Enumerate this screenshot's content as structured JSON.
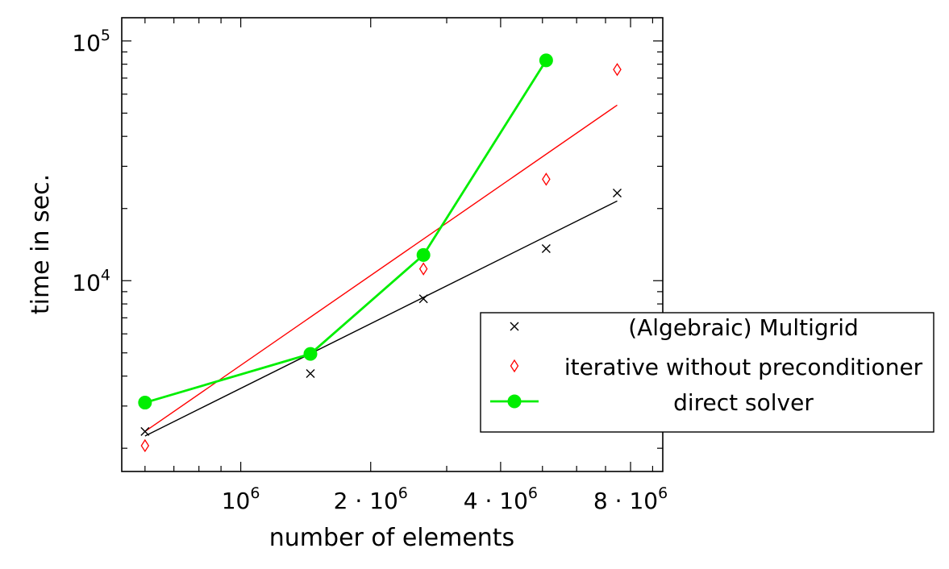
{
  "chart_data": {
    "type": "scatter",
    "title": "",
    "xlabel": "number of elements",
    "ylabel": "time in sec.",
    "xscale": "log",
    "yscale": "log",
    "xlim": [
      530000,
      9500000
    ],
    "ylim": [
      1600,
      125000
    ],
    "xticks": [
      {
        "value": 1000000,
        "base": "10",
        "exp": "6",
        "coef": ""
      },
      {
        "value": 2000000,
        "base": "10",
        "exp": "6",
        "coef": "2 · "
      },
      {
        "value": 4000000,
        "base": "10",
        "exp": "6",
        "coef": "4 · "
      },
      {
        "value": 8000000,
        "base": "10",
        "exp": "6",
        "coef": "8 · "
      }
    ],
    "yticks": [
      {
        "value": 10000,
        "base": "10",
        "exp": "4"
      },
      {
        "value": 100000,
        "base": "10",
        "exp": "5"
      }
    ],
    "grid": false,
    "legend_position": "right",
    "series": [
      {
        "name": "(Algebraic) Multigrid",
        "marker": "x",
        "color": "#000000",
        "x": [
          600000,
          1450000,
          2650000,
          5100000,
          7450000
        ],
        "y": [
          2350,
          4100,
          8400,
          13600,
          23200
        ],
        "fit": {
          "x": [
            600000,
            7450000
          ],
          "y": [
            2250,
            21500
          ]
        }
      },
      {
        "name": "iterative without preconditioner",
        "marker": "diamond",
        "color": "#ff0000",
        "x": [
          600000,
          2650000,
          5100000,
          7450000
        ],
        "y": [
          2050,
          11200,
          26500,
          76000
        ],
        "fit": {
          "x": [
            600000,
            7450000
          ],
          "y": [
            2350,
            54000
          ]
        }
      },
      {
        "name": "direct solver",
        "marker": "circle",
        "color": "#00ee00",
        "line": true,
        "x": [
          600000,
          1450000,
          2650000,
          5100000
        ],
        "y": [
          3100,
          4950,
          12800,
          83000
        ]
      }
    ]
  }
}
